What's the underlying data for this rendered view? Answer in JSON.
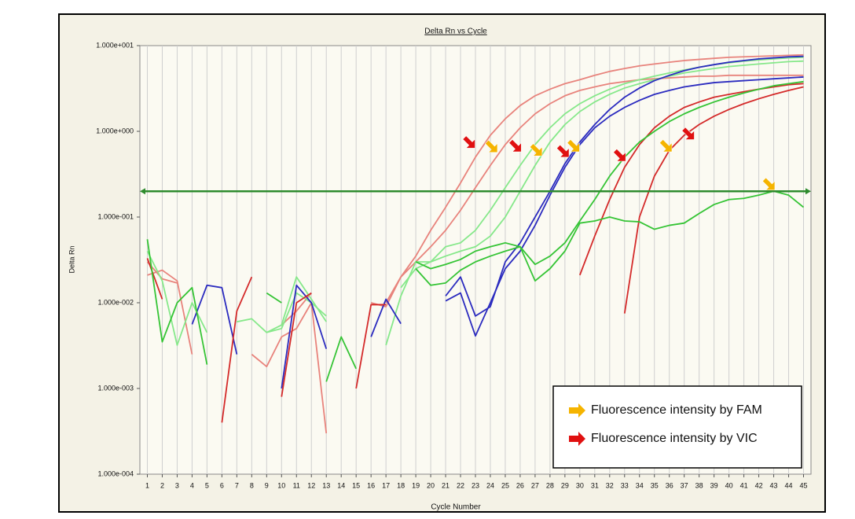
{
  "chart_data": {
    "type": "line",
    "title": "Delta Rn vs Cycle",
    "x_label": "Cycle Number",
    "y_label": "Delta Rn",
    "log_y": true,
    "grid": "x",
    "xlim": [
      0.5,
      45.5
    ],
    "ylim": [
      0.0001,
      10
    ],
    "xticks": [
      1,
      2,
      3,
      4,
      5,
      6,
      7,
      8,
      9,
      10,
      11,
      12,
      13,
      14,
      15,
      16,
      17,
      18,
      19,
      20,
      21,
      22,
      23,
      24,
      25,
      26,
      27,
      28,
      29,
      30,
      31,
      32,
      33,
      34,
      35,
      36,
      37,
      38,
      39,
      40,
      41,
      42,
      43,
      44,
      45
    ],
    "yticks": [
      {
        "value": 0.0001,
        "label": "1.000e-004"
      },
      {
        "value": 0.001,
        "label": "1.000e-003"
      },
      {
        "value": 0.01,
        "label": "1.000e-002"
      },
      {
        "value": 0.1,
        "label": "1.000e-001"
      },
      {
        "value": 1,
        "label": "1.000e+000"
      },
      {
        "value": 10,
        "label": "1.000e+001"
      }
    ],
    "x": [
      1,
      2,
      3,
      4,
      5,
      6,
      7,
      8,
      9,
      10,
      11,
      12,
      13,
      14,
      15,
      16,
      17,
      18,
      19,
      20,
      21,
      22,
      23,
      24,
      25,
      26,
      27,
      28,
      29,
      30,
      31,
      32,
      33,
      34,
      35,
      36,
      37,
      38,
      39,
      40,
      41,
      42,
      43,
      44,
      45
    ],
    "threshold": {
      "value": 0.2,
      "color": "#2e8b2e"
    },
    "series": [
      {
        "color": "#e8837c",
        "values": [
          0.021,
          0.024,
          0.018,
          0.0025,
          null,
          null,
          null,
          0.0025,
          0.0018,
          0.004,
          0.005,
          0.01,
          0.0003,
          null,
          null,
          0.01,
          0.009,
          0.02,
          0.035,
          0.07,
          0.13,
          0.25,
          0.5,
          0.9,
          1.4,
          2.0,
          2.6,
          3.1,
          3.6,
          4.0,
          4.5,
          5.0,
          5.4,
          5.8,
          6.1,
          6.4,
          6.7,
          6.9,
          7.1,
          7.3,
          7.4,
          7.5,
          7.6,
          7.7,
          7.8
        ]
      },
      {
        "color": "#e8837c",
        "values": [
          0.03,
          0.019,
          0.017,
          null,
          null,
          null,
          null,
          null,
          null,
          0.0055,
          0.008,
          0.013,
          null,
          null,
          null,
          null,
          0.01,
          0.02,
          0.03,
          0.045,
          0.07,
          0.12,
          0.22,
          0.4,
          0.7,
          1.1,
          1.6,
          2.1,
          2.6,
          3.0,
          3.3,
          3.6,
          3.8,
          4.0,
          4.1,
          4.2,
          4.3,
          4.4,
          4.4,
          4.5,
          4.5,
          4.5,
          4.5,
          4.5,
          4.5
        ]
      },
      {
        "color": "#86e88a",
        "values": [
          0.04,
          0.018,
          0.0032,
          0.01,
          0.0045,
          null,
          0.006,
          0.0065,
          0.0045,
          0.005,
          0.013,
          0.01,
          0.007,
          null,
          null,
          null,
          null,
          0.015,
          0.025,
          0.03,
          0.045,
          0.05,
          0.07,
          0.12,
          0.22,
          0.4,
          0.7,
          1.1,
          1.6,
          2.1,
          2.6,
          3.1,
          3.6,
          4.0,
          4.4,
          4.8,
          5.2,
          5.6,
          6.0,
          6.3,
          6.6,
          6.8,
          7.0,
          7.2,
          7.3
        ]
      },
      {
        "color": "#86e88a",
        "values": [
          null,
          null,
          null,
          null,
          null,
          null,
          null,
          null,
          0.0045,
          0.0055,
          0.02,
          0.011,
          0.006,
          null,
          null,
          null,
          0.0032,
          0.012,
          0.03,
          0.03,
          0.035,
          0.04,
          0.045,
          0.06,
          0.1,
          0.2,
          0.4,
          0.75,
          1.2,
          1.7,
          2.2,
          2.7,
          3.2,
          3.6,
          4.0,
          4.4,
          4.8,
          5.1,
          5.4,
          5.7,
          5.9,
          6.1,
          6.3,
          6.5,
          6.6
        ]
      },
      {
        "color": "#2b2bbf",
        "values": [
          null,
          null,
          null,
          0.0056,
          0.016,
          0.015,
          0.0025,
          null,
          null,
          null,
          null,
          null,
          null,
          null,
          null,
          null,
          null,
          null,
          null,
          null,
          0.012,
          0.02,
          0.007,
          0.009,
          0.03,
          0.05,
          0.1,
          0.2,
          0.42,
          0.75,
          1.2,
          1.8,
          2.5,
          3.2,
          3.9,
          4.5,
          5.1,
          5.6,
          6.0,
          6.4,
          6.7,
          7.0,
          7.2,
          7.4,
          7.5
        ]
      },
      {
        "color": "#2b2bbf",
        "values": [
          null,
          null,
          null,
          null,
          null,
          null,
          null,
          null,
          null,
          0.001,
          0.016,
          0.01,
          0.0029,
          null,
          null,
          0.004,
          0.011,
          0.0057,
          null,
          null,
          0.0105,
          0.013,
          0.0041,
          0.01,
          0.025,
          0.04,
          0.08,
          0.18,
          0.38,
          0.7,
          1.1,
          1.5,
          1.9,
          2.3,
          2.7,
          3.0,
          3.3,
          3.5,
          3.7,
          3.8,
          3.9,
          4.0,
          4.1,
          4.2,
          4.3
        ]
      },
      {
        "color": "#d42a2a",
        "values": [
          0.033,
          0.011,
          null,
          0.0023,
          null,
          0.0004,
          0.008,
          0.02,
          null,
          0.0008,
          0.01,
          0.013,
          null,
          null,
          null,
          null,
          null,
          null,
          null,
          null,
          null,
          null,
          null,
          null,
          null,
          null,
          null,
          null,
          null,
          0.021,
          0.06,
          0.16,
          0.38,
          0.7,
          1.1,
          1.5,
          1.9,
          2.2,
          2.5,
          2.7,
          2.9,
          3.1,
          3.3,
          3.5,
          3.6
        ]
      },
      {
        "color": "#d42a2a",
        "values": [
          null,
          null,
          null,
          null,
          null,
          null,
          null,
          null,
          null,
          null,
          null,
          null,
          null,
          null,
          0.001,
          0.0095,
          0.0095,
          null,
          null,
          null,
          null,
          null,
          null,
          null,
          null,
          null,
          null,
          null,
          null,
          null,
          null,
          null,
          0.0075,
          0.1,
          0.3,
          0.6,
          0.9,
          1.2,
          1.5,
          1.8,
          2.1,
          2.4,
          2.7,
          3.0,
          3.3
        ]
      },
      {
        "color": "#35c435",
        "values": [
          null,
          null,
          null,
          null,
          null,
          null,
          null,
          null,
          null,
          null,
          null,
          null,
          null,
          null,
          null,
          null,
          null,
          null,
          0.03,
          0.025,
          0.028,
          0.032,
          0.04,
          0.045,
          0.05,
          0.045,
          0.028,
          0.035,
          0.05,
          0.09,
          0.16,
          0.3,
          0.5,
          0.75,
          1.0,
          1.3,
          1.6,
          1.9,
          2.2,
          2.5,
          2.8,
          3.1,
          3.4,
          3.6,
          3.8
        ]
      },
      {
        "color": "#35c435",
        "values": [
          0.055,
          0.0035,
          0.01,
          0.015,
          0.0019,
          null,
          null,
          null,
          0.013,
          0.01,
          null,
          null,
          0.0012,
          0.004,
          0.0017,
          null,
          null,
          null,
          0.025,
          0.016,
          0.017,
          0.024,
          0.03,
          0.035,
          0.04,
          0.045,
          0.018,
          0.025,
          0.04,
          0.085,
          0.09,
          0.1,
          0.09,
          0.088,
          0.072,
          0.08,
          0.085,
          0.11,
          0.14,
          0.16,
          0.165,
          0.18,
          0.2,
          0.18,
          0.13
        ]
      }
    ],
    "legend": {
      "position": "lower right",
      "items": [
        {
          "label": "Fluorescence intensity by FAM",
          "color": "#f5b400"
        },
        {
          "label": "Fluorescence intensity by VIC",
          "color": "#e01010"
        }
      ]
    },
    "arrows": [
      {
        "x": 22.6,
        "y": 0.74,
        "color": "#e01010"
      },
      {
        "x": 24.1,
        "y": 0.66,
        "color": "#f5b400"
      },
      {
        "x": 25.7,
        "y": 0.67,
        "color": "#e01010"
      },
      {
        "x": 27.1,
        "y": 0.6,
        "color": "#f5b400"
      },
      {
        "x": 28.9,
        "y": 0.58,
        "color": "#e01010"
      },
      {
        "x": 29.6,
        "y": 0.67,
        "color": "#f5b400"
      },
      {
        "x": 32.7,
        "y": 0.52,
        "color": "#e01010"
      },
      {
        "x": 35.8,
        "y": 0.67,
        "color": "#f5b400"
      },
      {
        "x": 37.3,
        "y": 0.93,
        "color": "#e01010"
      },
      {
        "x": 42.7,
        "y": 0.24,
        "color": "#f5b400"
      }
    ]
  }
}
